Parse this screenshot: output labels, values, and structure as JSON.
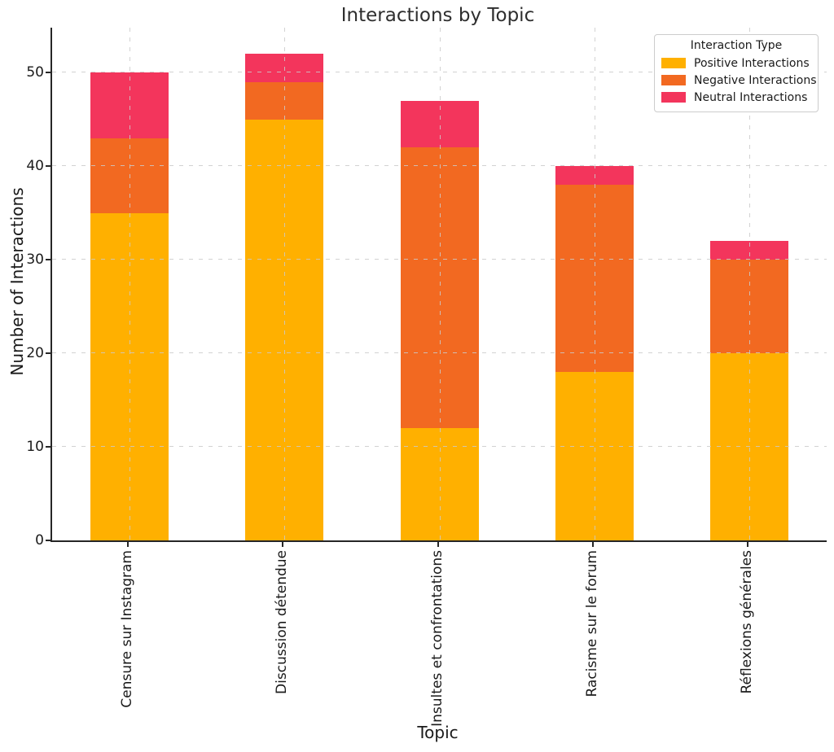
{
  "chart_data": {
    "type": "bar",
    "stacked": true,
    "title": "Interactions by Topic",
    "xlabel": "Topic",
    "ylabel": "Number of Interactions",
    "categories": [
      "Censure sur Instagram",
      "Discussion détendue",
      "Insultes et confrontations",
      "Racisme sur le forum",
      "Réflexions générales"
    ],
    "series": [
      {
        "name": "Positive Interactions",
        "color": "#FFB000",
        "values": [
          35,
          45,
          12,
          18,
          20
        ]
      },
      {
        "name": "Negative Interactions",
        "color": "#F26921",
        "values": [
          8,
          4,
          30,
          20,
          10
        ]
      },
      {
        "name": "Neutral Interactions",
        "color": "#F3355C",
        "values": [
          7,
          3,
          5,
          2,
          2
        ]
      }
    ],
    "totals": [
      50,
      52,
      47,
      40,
      32
    ],
    "yticks": [
      0,
      10,
      20,
      30,
      40,
      50
    ],
    "ytick_labels": [
      "0",
      "10",
      "20",
      "30",
      "40",
      "50"
    ],
    "ylim": [
      0,
      54.8
    ],
    "legend": {
      "title": "Interaction Type",
      "position": "upper right"
    },
    "grid": {
      "visible": true,
      "style": "dashed",
      "color": "#CACACA",
      "above_bars": true
    }
  }
}
